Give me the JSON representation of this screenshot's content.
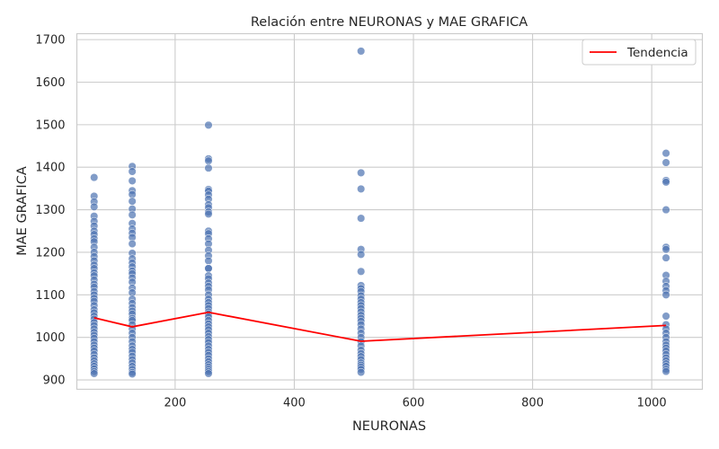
{
  "chart_data": {
    "type": "scatter",
    "title": "Relación entre NEURONAS y MAE GRAFICA",
    "xlabel": "NEURONAS",
    "ylabel": "MAE GRAFICA",
    "xlim": [
      35,
      1085
    ],
    "ylim": [
      878,
      1714
    ],
    "xticks": [
      200,
      400,
      600,
      800,
      1000
    ],
    "yticks": [
      900,
      1000,
      1100,
      1200,
      1300,
      1400,
      1500,
      1600,
      1700
    ],
    "grid": true,
    "point_color": "#4c72b0",
    "trend_color": "#ff0000",
    "legend": {
      "entries": [
        "Tendencia"
      ],
      "placement": "top-right"
    },
    "series": [
      {
        "kind": "scatter",
        "groups": [
          {
            "x": 64,
            "values": [
              1376,
              1332,
              1319,
              1307,
              1285,
              1273,
              1262,
              1250,
              1242,
              1232,
              1225,
              1212,
              1200,
              1190,
              1180,
              1170,
              1162,
              1152,
              1145,
              1135,
              1125,
              1118,
              1108,
              1100,
              1092,
              1085,
              1075,
              1065,
              1058,
              1050,
              1043,
              1035,
              1028,
              1020,
              1012,
              1005,
              998,
              990,
              982,
              975,
              968,
              960,
              952,
              945,
              938,
              932,
              926,
              920,
              915
            ]
          },
          {
            "x": 128,
            "values": [
              1402,
              1390,
              1368,
              1345,
              1336,
              1320,
              1302,
              1288,
              1268,
              1255,
              1245,
              1235,
              1220,
              1198,
              1185,
              1175,
              1166,
              1156,
              1150,
              1140,
              1130,
              1116,
              1105,
              1090,
              1080,
              1070,
              1062,
              1055,
              1045,
              1040,
              1030,
              1020,
              1010,
              1000,
              990,
              980,
              972,
              965,
              956,
              948,
              940,
              932,
              925,
              918,
              914
            ]
          },
          {
            "x": 256,
            "values": [
              1499,
              1420,
              1415,
              1398,
              1348,
              1344,
              1335,
              1325,
              1312,
              1305,
              1295,
              1290,
              1250,
              1244,
              1232,
              1220,
              1205,
              1192,
              1180,
              1163,
              1162,
              1145,
              1138,
              1128,
              1120,
              1112,
              1100,
              1090,
              1082,
              1075,
              1068,
              1060,
              1055,
              1048,
              1040,
              1032,
              1025,
              1018,
              1010,
              1002,
              995,
              988,
              980,
              972,
              965,
              958,
              950,
              943,
              936,
              930,
              925,
              920,
              915
            ]
          },
          {
            "x": 512,
            "values": [
              1673,
              1387,
              1349,
              1280,
              1207,
              1195,
              1155,
              1122,
              1115,
              1108,
              1098,
              1090,
              1082,
              1075,
              1068,
              1060,
              1052,
              1045,
              1038,
              1030,
              1020,
              1010,
              1000,
              990,
              980,
              970,
              962,
              955,
              948,
              940,
              935,
              930,
              925,
              918
            ]
          },
          {
            "x": 1024,
            "values": [
              1433,
              1411,
              1369,
              1365,
              1300,
              1212,
              1207,
              1187,
              1146,
              1132,
              1120,
              1110,
              1100,
              1050,
              1030,
              1020,
              1010,
              1000,
              990,
              982,
              975,
              968,
              960,
              952,
              945,
              938,
              932,
              925,
              920
            ]
          }
        ]
      },
      {
        "kind": "line",
        "name": "Tendencia",
        "x": [
          64,
          128,
          256,
          512,
          1024
        ],
        "y": [
          1046,
          1025,
          1059,
          991,
          1028
        ]
      }
    ]
  }
}
